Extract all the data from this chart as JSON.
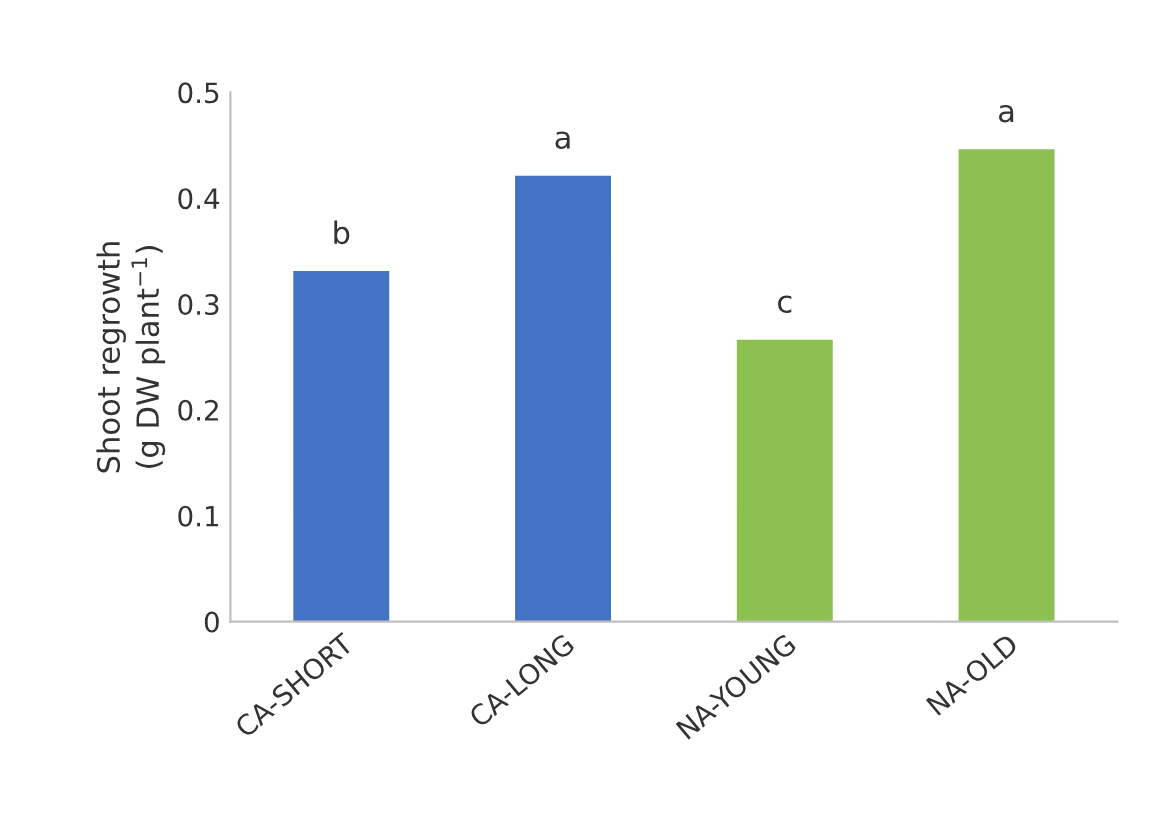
{
  "chart_data": {
    "type": "bar",
    "ylabel": "Shoot regrowth\n(g DW plant$^{−1}$)",
    "categories": [
      "CA-SHORT",
      "CA-LONG",
      "NA-YOUNG",
      "NA-OLD"
    ],
    "values": [
      0.33,
      0.42,
      0.265,
      0.445
    ],
    "colors": [
      "#4472c4",
      "#4472c4",
      "#8cc152",
      "#8cc152"
    ],
    "ylim": [
      0,
      0.5
    ],
    "yticks": [
      0,
      0.1,
      0.2,
      0.3,
      0.4,
      0.5
    ],
    "grid": false,
    "legend": false,
    "annotations": [
      {
        "text": "b",
        "x": "CA-SHORT",
        "y": 0.33
      },
      {
        "text": "a",
        "x": "CA-LONG",
        "y": 0.42
      },
      {
        "text": "c",
        "x": "NA-YOUNG",
        "y": 0.265
      },
      {
        "text": "a",
        "x": "NA-OLD",
        "y": 0.445
      }
    ]
  }
}
